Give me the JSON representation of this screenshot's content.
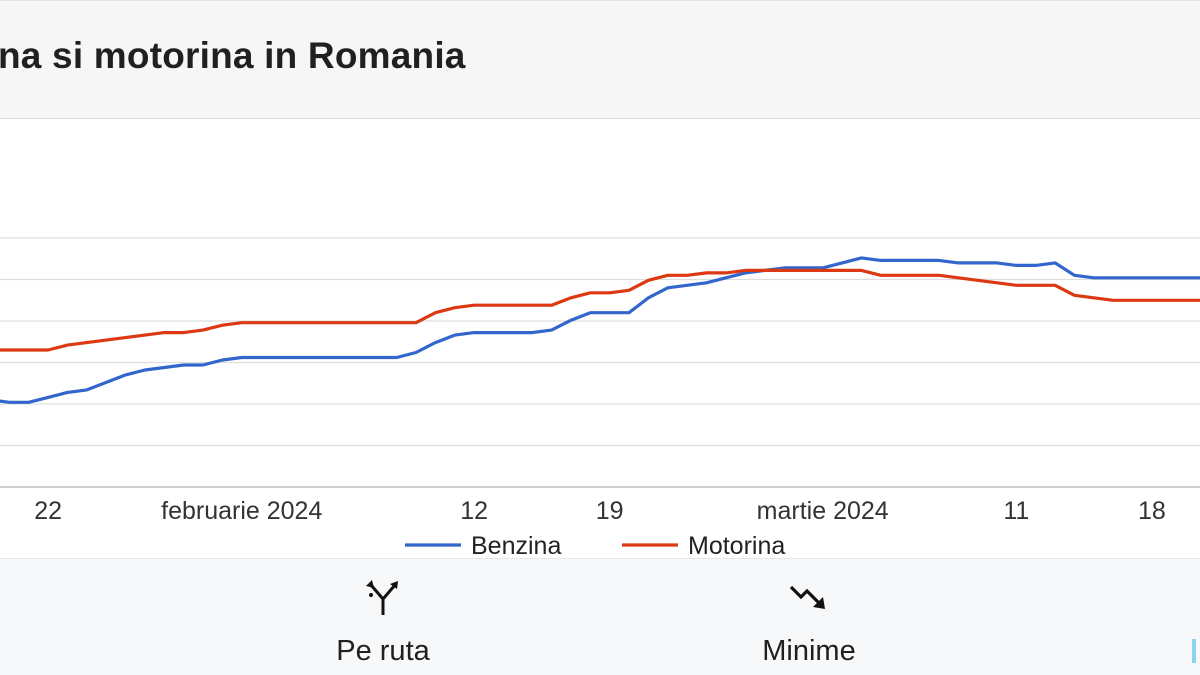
{
  "header": {
    "title": "na si motorina in Romania"
  },
  "chart_data": {
    "type": "line",
    "x_tick_labels": [
      {
        "label": "22",
        "index": 3
      },
      {
        "label": "februarie 2024",
        "index": 13
      },
      {
        "label": "12",
        "index": 25
      },
      {
        "label": "19",
        "index": 32
      },
      {
        "label": "martie 2024",
        "index": 43
      },
      {
        "label": "11",
        "index": 53
      },
      {
        "label": "18",
        "index": 60
      }
    ],
    "x_count": 64,
    "series": [
      {
        "name": "Benzina",
        "color": "#3366cc",
        "values": [
          0.35,
          0.34,
          0.34,
          0.36,
          0.38,
          0.39,
          0.42,
          0.45,
          0.47,
          0.48,
          0.49,
          0.49,
          0.51,
          0.52,
          0.52,
          0.52,
          0.52,
          0.52,
          0.52,
          0.52,
          0.52,
          0.52,
          0.54,
          0.58,
          0.61,
          0.62,
          0.62,
          0.62,
          0.62,
          0.63,
          0.67,
          0.7,
          0.7,
          0.7,
          0.76,
          0.8,
          0.81,
          0.82,
          0.84,
          0.86,
          0.87,
          0.88,
          0.88,
          0.88,
          0.9,
          0.92,
          0.91,
          0.91,
          0.91,
          0.91,
          0.9,
          0.9,
          0.9,
          0.89,
          0.89,
          0.9,
          0.85,
          0.84,
          0.84,
          0.84,
          0.84,
          0.84,
          0.84,
          0.84
        ]
      },
      {
        "name": "Motorina",
        "color": "#dc3912",
        "values": [
          0.55,
          0.55,
          0.55,
          0.55,
          0.57,
          0.58,
          0.59,
          0.6,
          0.61,
          0.62,
          0.62,
          0.63,
          0.65,
          0.66,
          0.66,
          0.66,
          0.66,
          0.66,
          0.66,
          0.66,
          0.66,
          0.66,
          0.66,
          0.7,
          0.72,
          0.73,
          0.73,
          0.73,
          0.73,
          0.73,
          0.76,
          0.78,
          0.78,
          0.79,
          0.83,
          0.85,
          0.85,
          0.86,
          0.86,
          0.87,
          0.87,
          0.87,
          0.87,
          0.87,
          0.87,
          0.87,
          0.85,
          0.85,
          0.85,
          0.85,
          0.84,
          0.83,
          0.82,
          0.81,
          0.81,
          0.81,
          0.77,
          0.76,
          0.75,
          0.75,
          0.75,
          0.75,
          0.75,
          0.75
        ]
      }
    ],
    "grid": true,
    "legend": "bottom"
  },
  "nav": {
    "items": [
      {
        "label": "Pe ruta",
        "icon": "route-fork-icon"
      },
      {
        "label": "Minime",
        "icon": "trend-down-icon"
      }
    ]
  }
}
